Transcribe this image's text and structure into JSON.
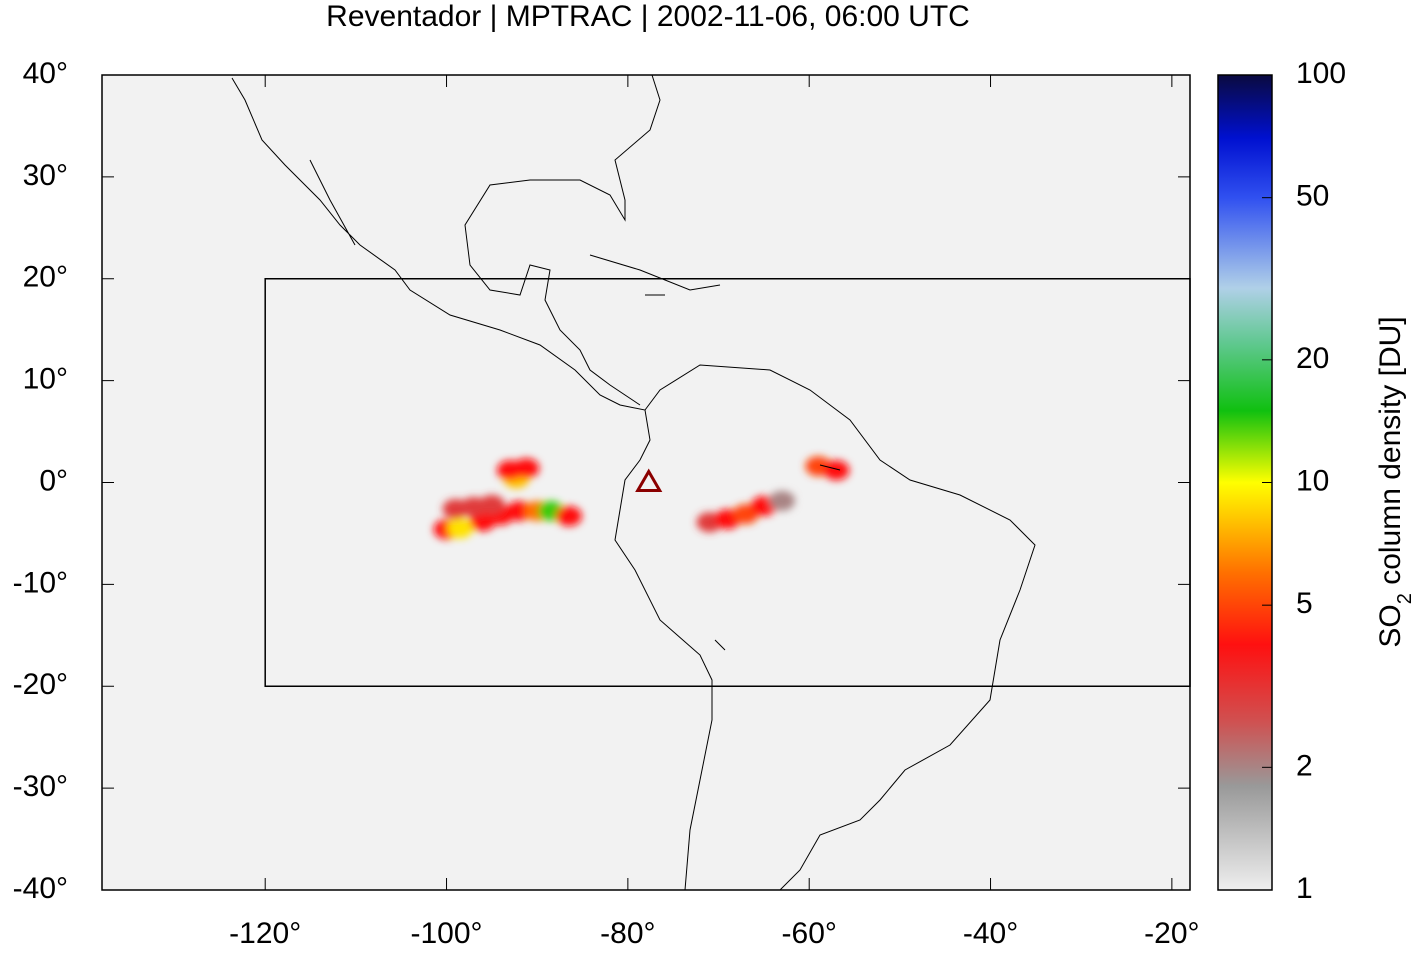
{
  "chart_data": {
    "type": "map",
    "title": "Reventador | MPTRAC | 2002-11-06, 06:00 UTC",
    "xlim": [
      -138,
      -18
    ],
    "ylim": [
      -40,
      40
    ],
    "xticks": [
      {
        "value": -120,
        "label": "-120°"
      },
      {
        "value": -100,
        "label": "-100°"
      },
      {
        "value": -80,
        "label": "-80°"
      },
      {
        "value": -60,
        "label": "-60°"
      },
      {
        "value": -40,
        "label": "-40°"
      },
      {
        "value": -20,
        "label": "-20°"
      }
    ],
    "yticks": [
      {
        "value": 40,
        "label": "40°"
      },
      {
        "value": 30,
        "label": "30°"
      },
      {
        "value": 20,
        "label": "20°"
      },
      {
        "value": 10,
        "label": "10°"
      },
      {
        "value": 0,
        "label": "0°"
      },
      {
        "value": -10,
        "label": "-10°"
      },
      {
        "value": -20,
        "label": "-20°"
      },
      {
        "value": -30,
        "label": "-30°"
      },
      {
        "value": -40,
        "label": "-40°"
      }
    ],
    "box": {
      "lon": [
        -120,
        -18
      ],
      "lat": [
        -20,
        20
      ]
    },
    "volcano": {
      "lon": -77.7,
      "lat": 0,
      "color": "#8b0000"
    },
    "colorbar": {
      "label": {
        "text": "SO",
        "subscript": "2",
        "rest": " column density [DU]"
      },
      "log_scale": true,
      "lim": [
        1,
        100
      ],
      "ticks": [
        1,
        2,
        5,
        10,
        20,
        50,
        100
      ],
      "colorscale": [
        {
          "value": 1,
          "color": "#eeeeee"
        },
        {
          "value": 1.8,
          "color": "#999999"
        },
        {
          "value": 2.6,
          "color": "#d05050"
        },
        {
          "value": 4,
          "color": "#ff1010"
        },
        {
          "value": 6,
          "color": "#ff7000"
        },
        {
          "value": 10,
          "color": "#ffff00"
        },
        {
          "value": 15,
          "color": "#10c010"
        },
        {
          "value": 22,
          "color": "#60c890"
        },
        {
          "value": 30,
          "color": "#b0d0e8"
        },
        {
          "value": 50,
          "color": "#3050f0"
        },
        {
          "value": 70,
          "color": "#0010d0"
        },
        {
          "value": 100,
          "color": "#0a0a40"
        }
      ]
    },
    "plume": [
      {
        "lon": -100,
        "lat": -4.6,
        "value": 4
      },
      {
        "lon": -98.5,
        "lat": -4.5,
        "value": 9
      },
      {
        "lon": -96,
        "lat": -3.8,
        "value": 4
      },
      {
        "lon": -94,
        "lat": -3.2,
        "value": 4
      },
      {
        "lon": -92,
        "lat": -2.8,
        "value": 4
      },
      {
        "lon": -90,
        "lat": -2.8,
        "value": 6
      },
      {
        "lon": -88.5,
        "lat": -2.8,
        "value": 14
      },
      {
        "lon": -86.5,
        "lat": -3.3,
        "value": 4
      },
      {
        "lon": -99,
        "lat": -2.6,
        "value": 3
      },
      {
        "lon": -97,
        "lat": -2.4,
        "value": 3
      },
      {
        "lon": -95,
        "lat": -2.2,
        "value": 3
      },
      {
        "lon": -92.3,
        "lat": 0.4,
        "value": 8
      },
      {
        "lon": -91.2,
        "lat": 1.4,
        "value": 4
      },
      {
        "lon": -93,
        "lat": 1.2,
        "value": 4
      },
      {
        "lon": -71,
        "lat": -3.9,
        "value": 3
      },
      {
        "lon": -69,
        "lat": -3.6,
        "value": 4
      },
      {
        "lon": -67,
        "lat": -3.1,
        "value": 5
      },
      {
        "lon": -65,
        "lat": -2.3,
        "value": 4
      },
      {
        "lon": -63,
        "lat": -1.8,
        "value": 2
      },
      {
        "lon": -59,
        "lat": 1.6,
        "value": 5
      },
      {
        "lon": -57,
        "lat": 1.2,
        "value": 4
      }
    ]
  }
}
